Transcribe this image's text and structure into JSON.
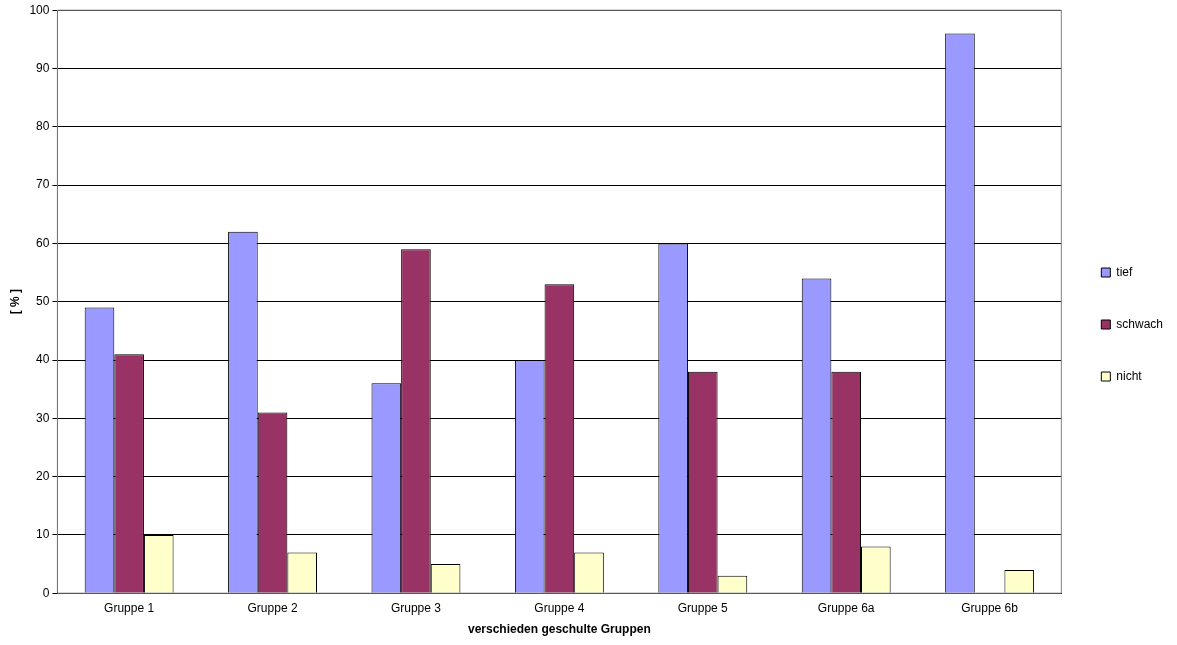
{
  "chart_data": {
    "type": "bar",
    "xlabel": "verschieden geschulte Gruppen",
    "ylabel": "[ % ]",
    "categories": [
      "Gruppe 1",
      "Gruppe 2",
      "Gruppe 3",
      "Gruppe 4",
      "Gruppe 5",
      "Gruppe 6a",
      "Gruppe 6b"
    ],
    "series": [
      {
        "name": "tief",
        "color": "#9999ff",
        "values": [
          49,
          62,
          36,
          40,
          60,
          54,
          96
        ]
      },
      {
        "name": "schwach",
        "color": "#993366",
        "values": [
          41,
          31,
          59,
          53,
          38,
          38,
          0
        ]
      },
      {
        "name": "nicht",
        "color": "#ffffcc",
        "values": [
          10,
          7,
          5,
          7,
          3,
          8,
          4
        ]
      }
    ],
    "ylim": [
      0,
      100
    ],
    "yticks": [
      0,
      10,
      20,
      30,
      40,
      50,
      60,
      70,
      80,
      90,
      100
    ],
    "grid": "y",
    "legend": "right"
  }
}
